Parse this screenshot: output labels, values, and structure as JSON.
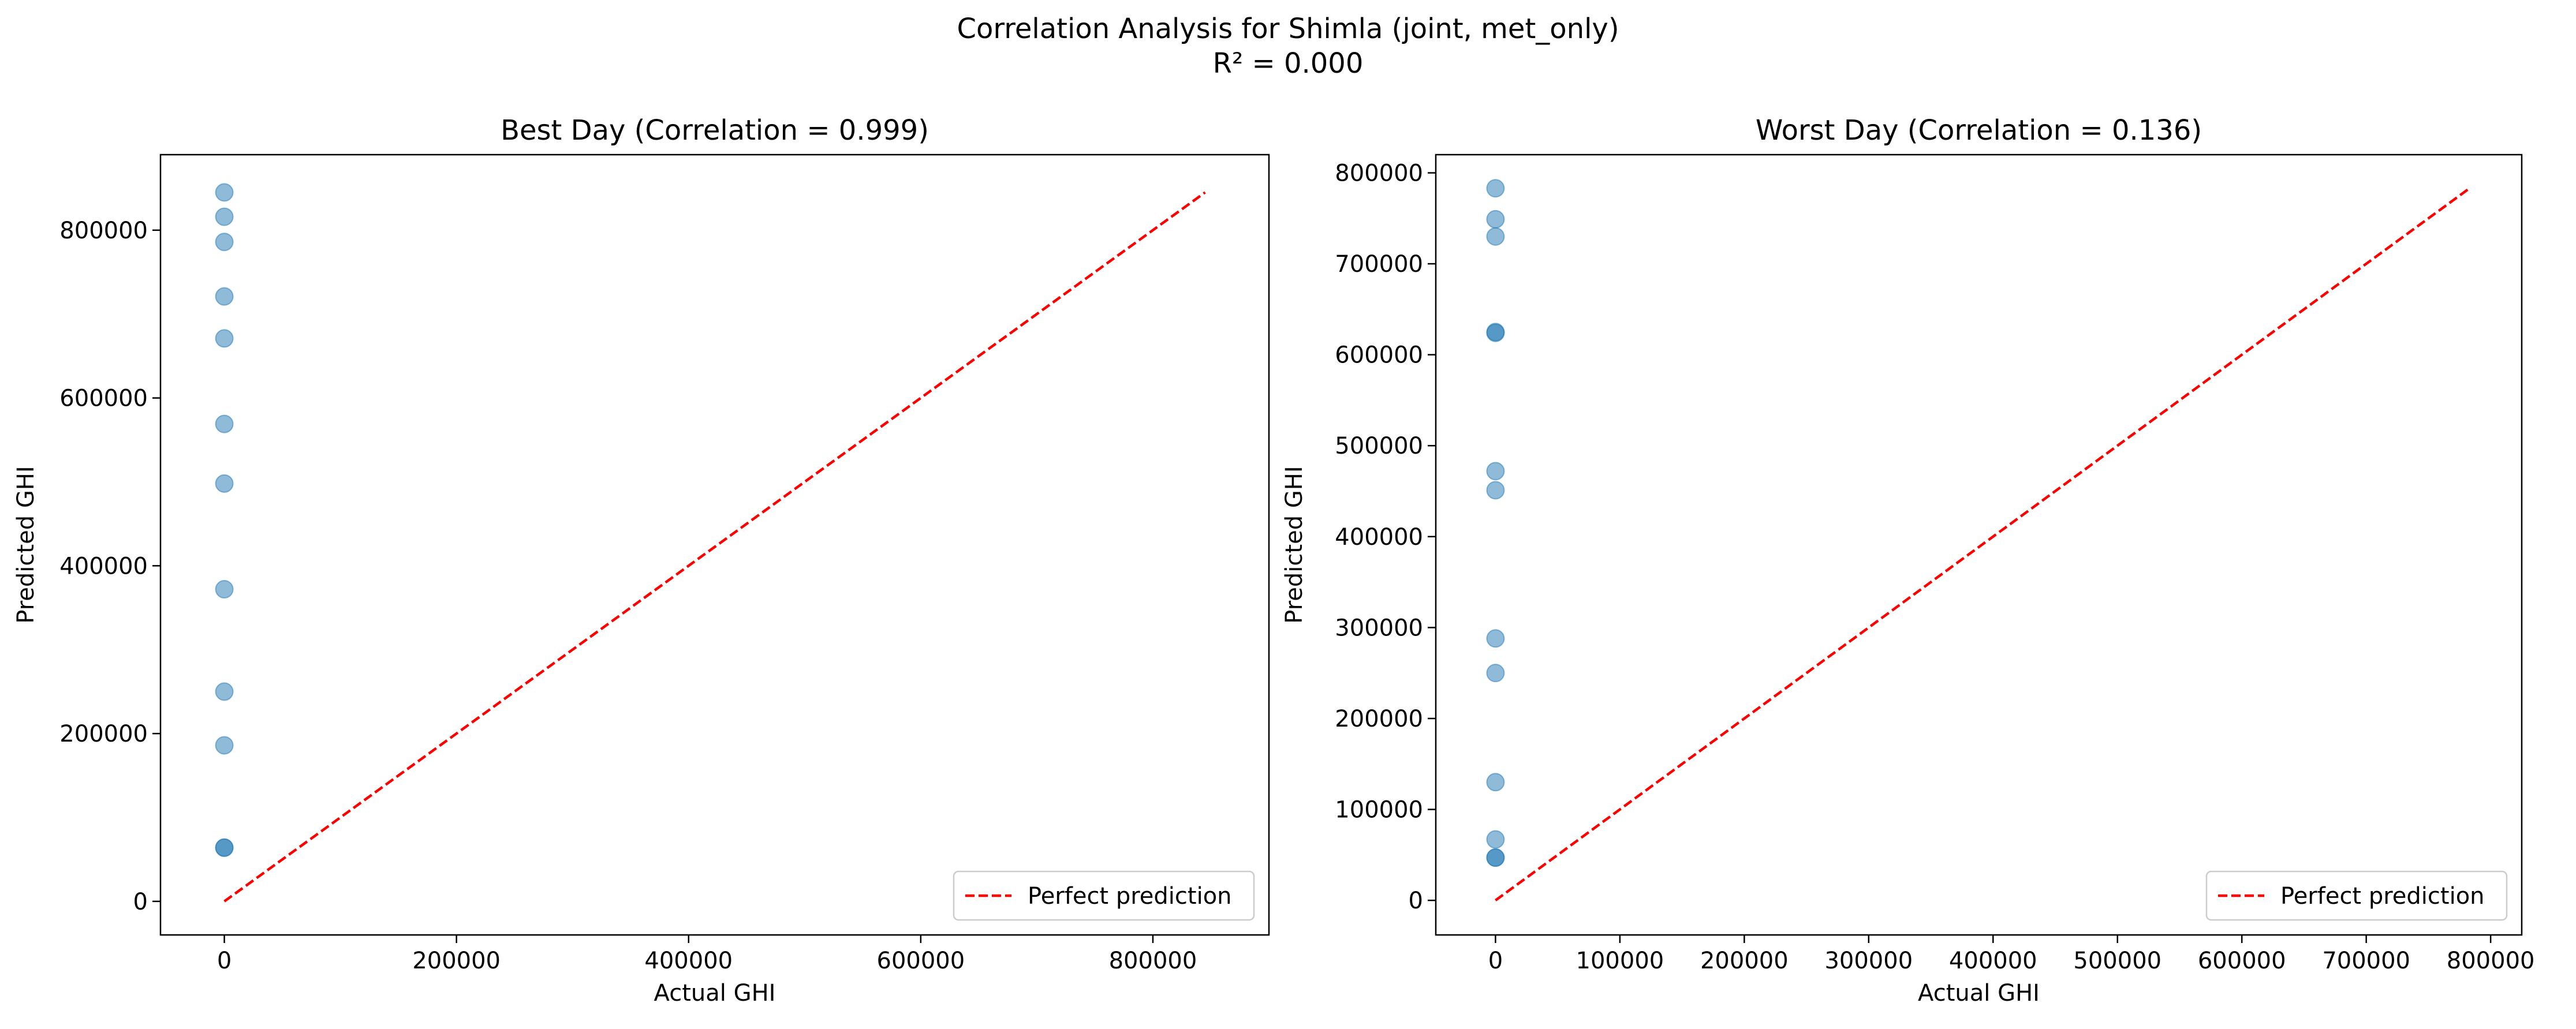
{
  "figure": {
    "title_line1": "Correlation Analysis for Shimla (joint, met_only)",
    "title_line2": "R² = 0.000"
  },
  "chart_data": [
    {
      "type": "scatter",
      "title": "Best Day (Correlation = 0.999)",
      "xlabel": "Actual GHI",
      "ylabel": "Predicted GHI",
      "xlim": [
        -55000,
        900000
      ],
      "ylim": [
        -40000,
        890000
      ],
      "xticks": [
        0,
        200000,
        400000,
        600000,
        800000
      ],
      "yticks": [
        0,
        200000,
        400000,
        600000,
        800000
      ],
      "grid": false,
      "legend_position": "lower-right",
      "series": [
        {
          "kind": "points",
          "color": "#1f77b4",
          "x": [
            0,
            0,
            0,
            0,
            0,
            0,
            0,
            0,
            0,
            0,
            0,
            0
          ],
          "y": [
            845000,
            816000,
            786000,
            721000,
            671000,
            569000,
            498000,
            372000,
            250000,
            186000,
            64000,
            64000
          ]
        },
        {
          "kind": "line",
          "name": "Perfect prediction",
          "color": "#ff0000",
          "x": [
            0,
            845000
          ],
          "y": [
            0,
            845000
          ]
        }
      ]
    },
    {
      "type": "scatter",
      "title": "Worst Day (Correlation = 0.136)",
      "xlabel": "Actual GHI",
      "ylabel": "Predicted GHI",
      "xlim": [
        -48000,
        825000
      ],
      "ylim": [
        -38000,
        820000
      ],
      "xticks": [
        0,
        100000,
        200000,
        300000,
        400000,
        500000,
        600000,
        700000,
        800000
      ],
      "yticks": [
        0,
        100000,
        200000,
        300000,
        400000,
        500000,
        600000,
        700000,
        800000
      ],
      "grid": false,
      "legend_position": "lower-right",
      "series": [
        {
          "kind": "points",
          "color": "#1f77b4",
          "x": [
            0,
            0,
            0,
            0,
            0,
            0,
            0,
            0,
            0,
            0,
            0,
            0,
            0
          ],
          "y": [
            783000,
            749000,
            730000,
            625000,
            624000,
            472000,
            451000,
            288000,
            250000,
            130000,
            67000,
            47000,
            47000
          ]
        },
        {
          "kind": "line",
          "name": "Perfect prediction",
          "color": "#ff0000",
          "x": [
            0,
            783000
          ],
          "y": [
            0,
            783000
          ]
        }
      ]
    }
  ]
}
